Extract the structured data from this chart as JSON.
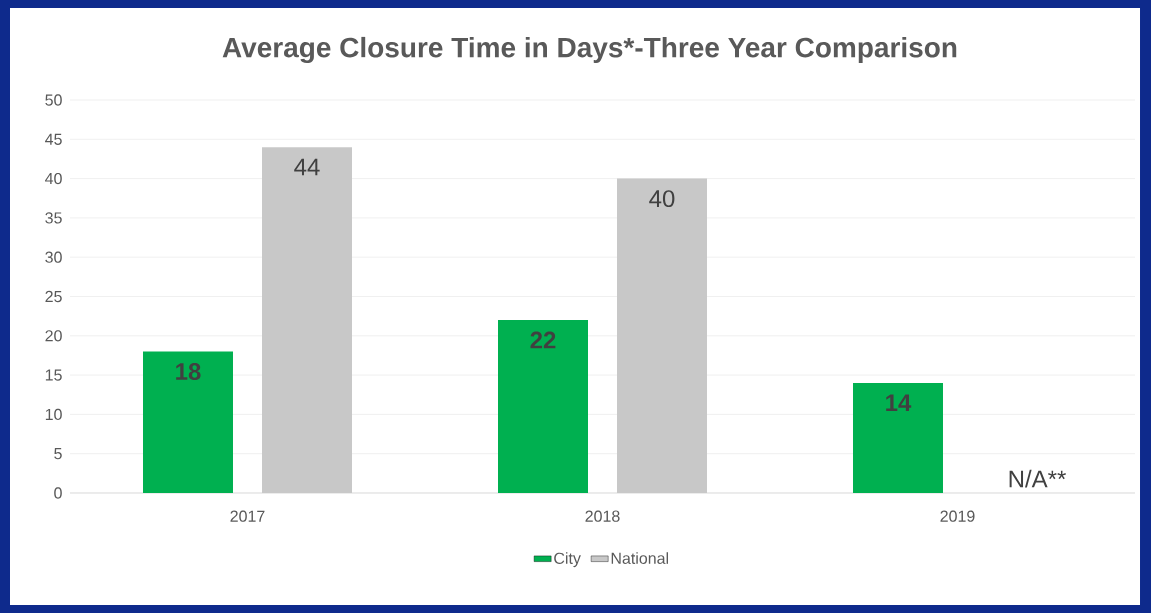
{
  "chart_data": {
    "type": "bar",
    "title": "Average Closure Time in Days*-Three Year Comparison",
    "categories": [
      "2017",
      "2018",
      "2019"
    ],
    "series": [
      {
        "name": "City",
        "color": "#00b050",
        "values": [
          18,
          22,
          14
        ],
        "value_labels": [
          "18",
          "22",
          "14"
        ]
      },
      {
        "name": "National",
        "color": "#c8c8c8",
        "values": [
          44,
          40,
          null
        ],
        "value_labels": [
          "44",
          "40",
          "N/A**"
        ]
      }
    ],
    "ylim": [
      0,
      50
    ],
    "yticks": [
      0,
      5,
      10,
      15,
      20,
      25,
      30,
      35,
      40,
      45,
      50
    ],
    "grid": "y",
    "legend": "bottom"
  }
}
